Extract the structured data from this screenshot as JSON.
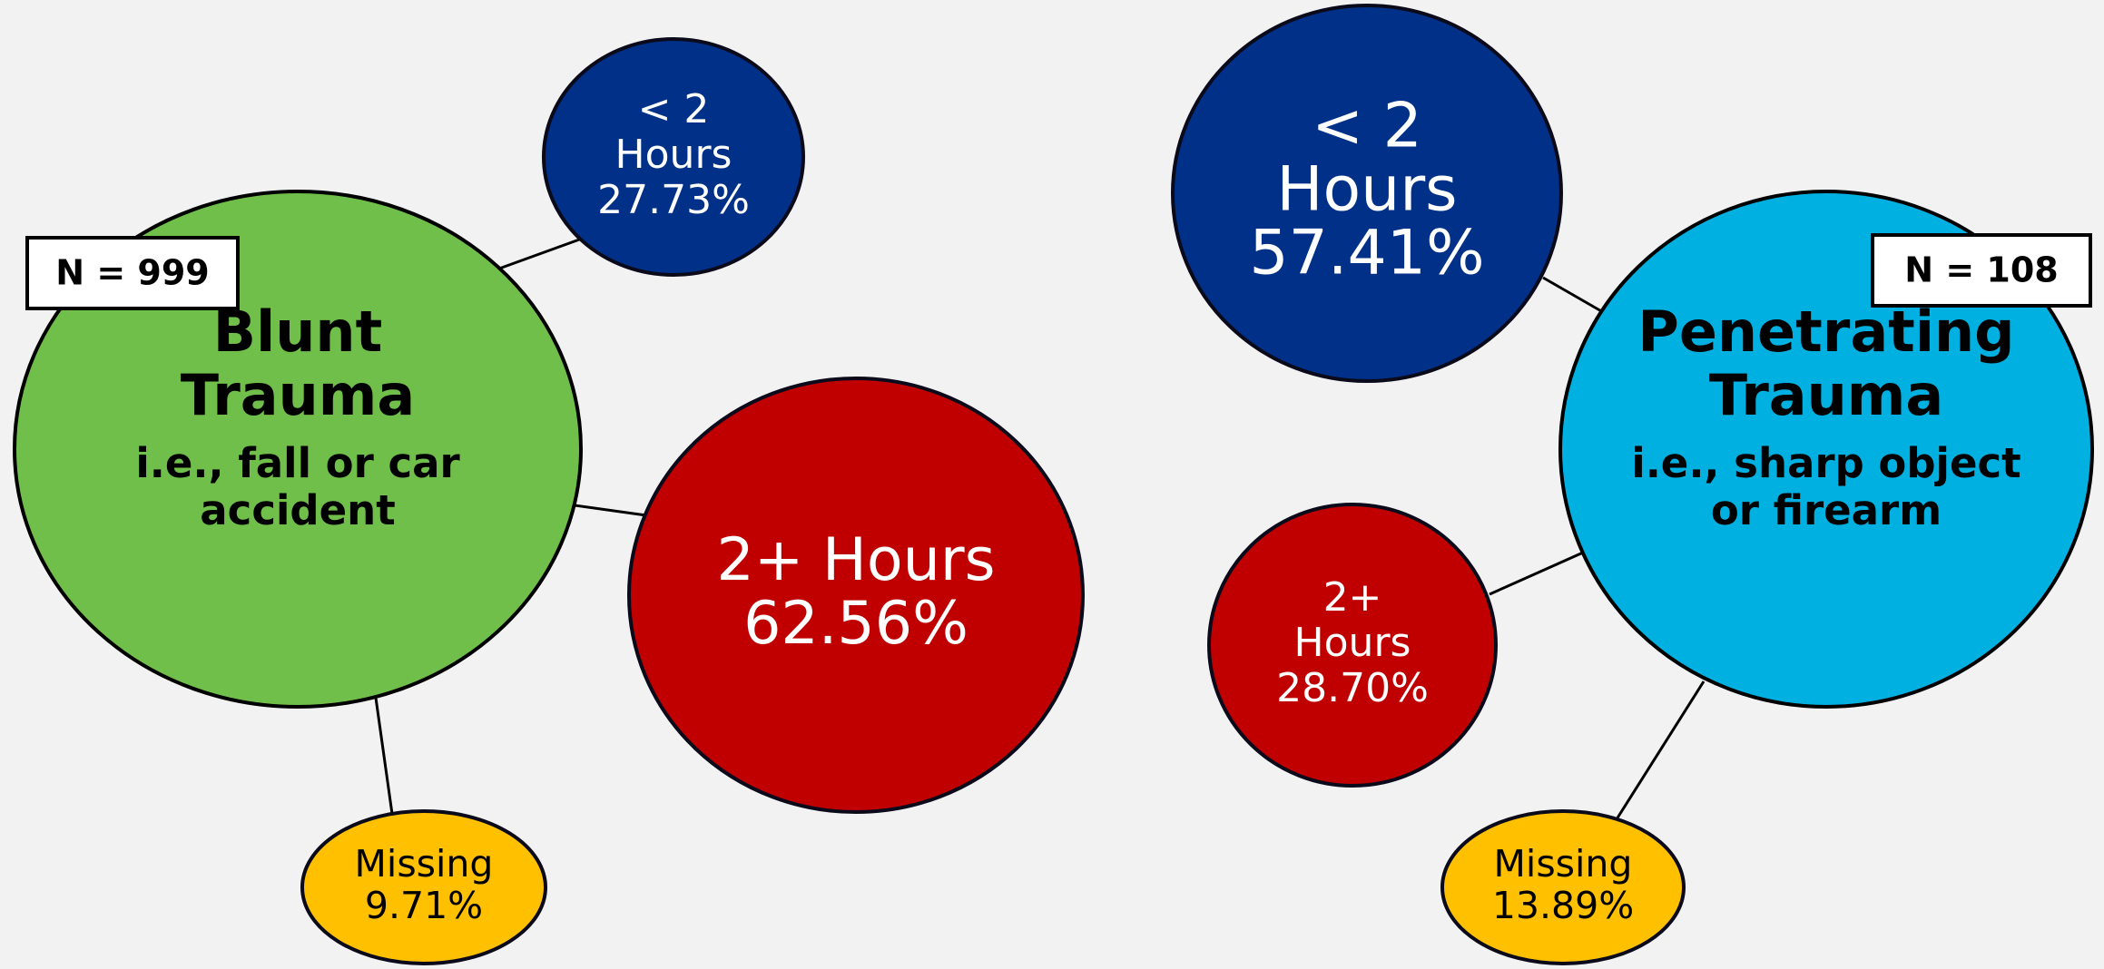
{
  "groups": [
    {
      "title": [
        "Blunt",
        "Trauma"
      ],
      "subtitle": [
        "i.e., fall or car",
        "accident"
      ],
      "n_label": "N = 999",
      "color": "#70bf4a",
      "nodes": [
        {
          "lines": [
            "< 2",
            "Hours",
            "27.73%"
          ],
          "color": "#003087"
        },
        {
          "lines": [
            "2+ Hours",
            "62.56%"
          ],
          "color": "#c00000"
        },
        {
          "lines": [
            "Missing",
            "9.71%"
          ],
          "color": "#ffc000"
        }
      ]
    },
    {
      "title": [
        "Penetrating",
        "Trauma"
      ],
      "subtitle": [
        "i.e., sharp object",
        "or firearm"
      ],
      "n_label": "N = 108",
      "color": "#00b0e0",
      "nodes": [
        {
          "lines": [
            "< 2",
            "Hours",
            "57.41%"
          ],
          "color": "#003087"
        },
        {
          "lines": [
            "2+",
            "Hours",
            "28.70%"
          ],
          "color": "#c00000"
        },
        {
          "lines": [
            "Missing",
            "13.89%"
          ],
          "color": "#ffc000"
        }
      ]
    }
  ]
}
